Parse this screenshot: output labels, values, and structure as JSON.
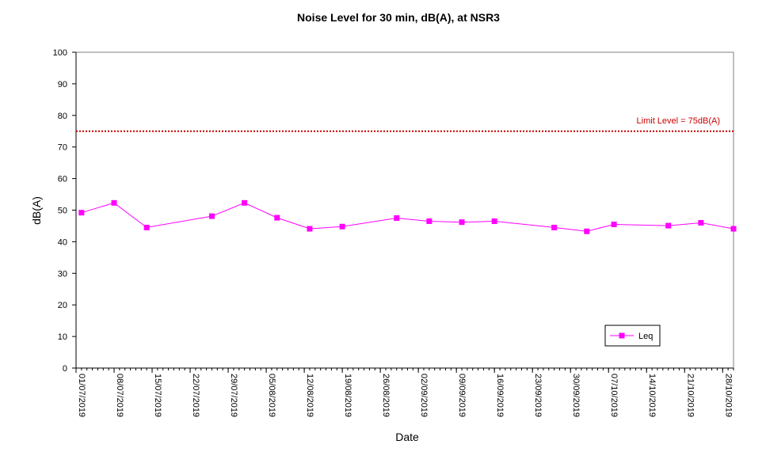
{
  "chart_data": {
    "type": "line",
    "title": "Noise Level for 30 min, dB(A), at NSR3",
    "xlabel": "Date",
    "ylabel": "dB(A)",
    "ylim": [
      0,
      100
    ],
    "yticks": [
      "0",
      "10",
      "20",
      "30",
      "40",
      "50",
      "60",
      "70",
      "80",
      "90",
      "100"
    ],
    "xlim": [
      "2019-07-01",
      "2019-10-30"
    ],
    "xticks": [
      "01/07/2019",
      "08/07/2019",
      "15/07/2019",
      "22/07/2019",
      "29/07/2019",
      "05/08/2019",
      "12/08/2019",
      "19/08/2019",
      "26/08/2019",
      "02/09/2019",
      "09/09/2019",
      "16/09/2019",
      "23/09/2019",
      "30/09/2019",
      "07/10/2019",
      "14/10/2019",
      "21/10/2019",
      "28/10/2019"
    ],
    "grid": false,
    "legend_position": "bottom-right",
    "limit_line": {
      "label": "Limit Level  = 75dB(A)",
      "value": 75,
      "color": "#cc0000"
    },
    "series": [
      {
        "name": "Leq",
        "color": "#ff00ff",
        "x": [
          "2019-07-02",
          "2019-07-08",
          "2019-07-14",
          "2019-07-26",
          "2019-08-01",
          "2019-08-07",
          "2019-08-13",
          "2019-08-19",
          "2019-08-29",
          "2019-09-04",
          "2019-09-10",
          "2019-09-16",
          "2019-09-27",
          "2019-10-03",
          "2019-10-08",
          "2019-10-18",
          "2019-10-24",
          "2019-10-30"
        ],
        "values": [
          49.2,
          52.3,
          44.5,
          48.1,
          52.3,
          47.6,
          44.1,
          44.8,
          47.5,
          46.5,
          46.2,
          46.5,
          44.5,
          43.3,
          45.5,
          45.1,
          46.0,
          44.1
        ]
      }
    ]
  }
}
